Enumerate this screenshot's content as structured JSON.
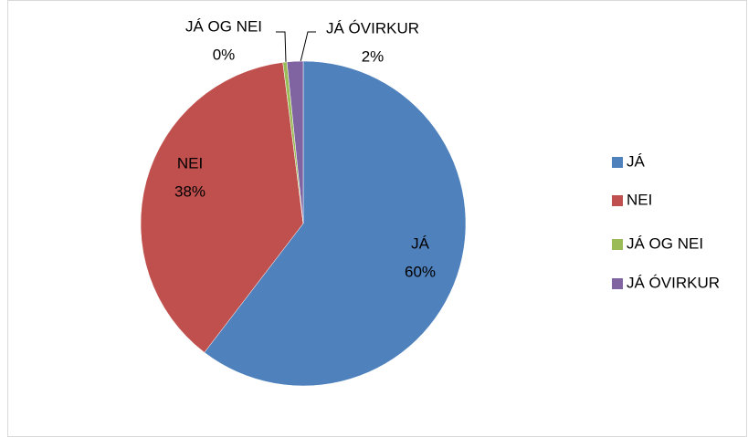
{
  "chart_data": {
    "type": "pie",
    "categories": [
      "JÁ",
      "NEI",
      "JÁ OG NEI",
      "JÁ ÓVIRKUR"
    ],
    "values": [
      60.4,
      37.6,
      0.4,
      1.6
    ],
    "value_labels": [
      "60%",
      "38%",
      "0%",
      "2%"
    ],
    "colors": [
      "#4f81bd",
      "#c0504d",
      "#9bbb59",
      "#8064a2"
    ],
    "legend": "right"
  }
}
